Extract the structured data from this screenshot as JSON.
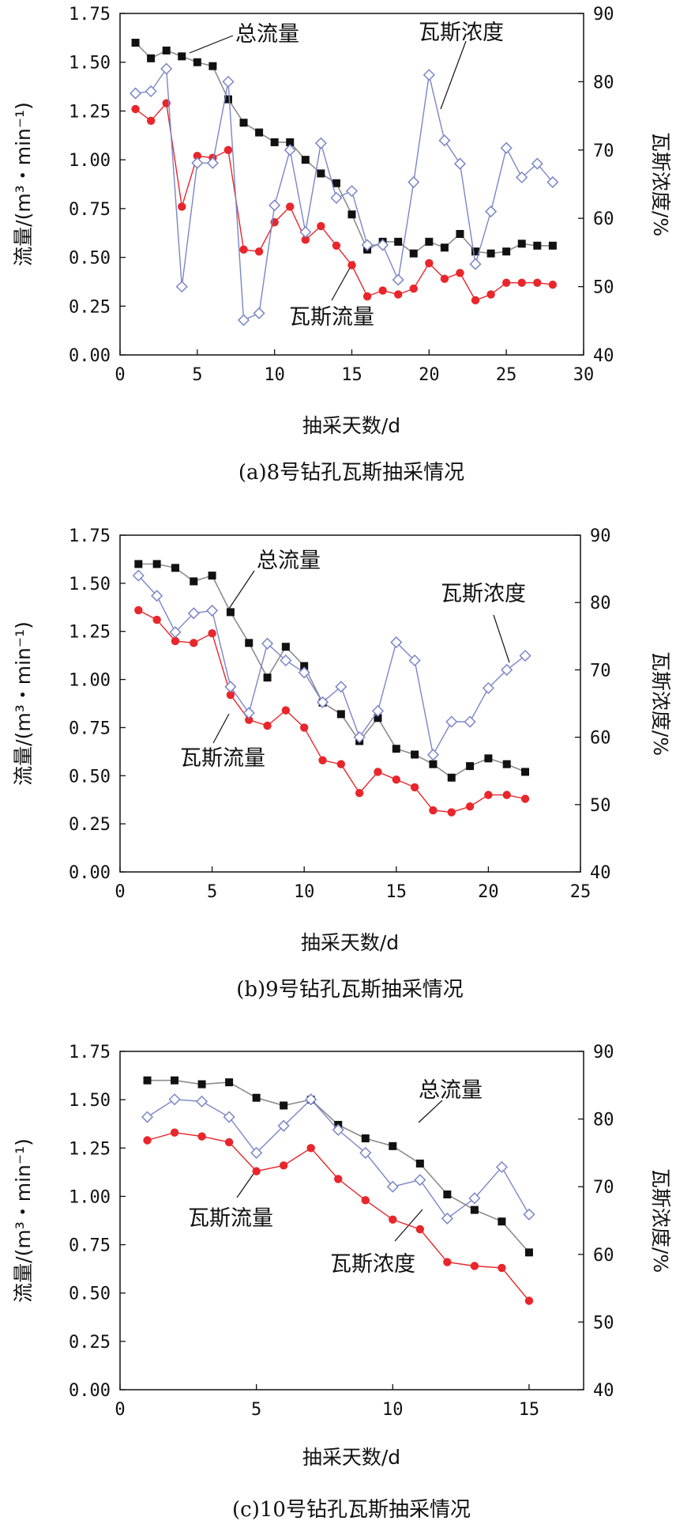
{
  "chart_data": [
    {
      "type": "line",
      "caption": "(a)8号钻孔瓦斯抽采情况",
      "xlabel": "抽采天数/d",
      "ylabel_left": "流量/(m³・min⁻¹)",
      "ylabel_right": "瓦斯浓度/%",
      "xlim": [
        0,
        30
      ],
      "xticks": [
        0,
        5,
        10,
        15,
        20,
        25,
        30
      ],
      "ylim_left": [
        0,
        1.75
      ],
      "yticks_left": [
        "0.00",
        "0.25",
        "0.50",
        "0.75",
        "1.00",
        "1.25",
        "1.50",
        "1.75"
      ],
      "ylim_right": [
        40,
        90
      ],
      "yticks_right": [
        "40",
        "50",
        "60",
        "70",
        "80",
        "90"
      ],
      "grid": false,
      "colors": {
        "total": "#111111",
        "gas_flow": "#e8262b",
        "concentration": "#7b86c7"
      },
      "series": [
        {
          "key": "total",
          "name": "总流量",
          "axis": "left",
          "marker": "square",
          "x": [
            1,
            2,
            3,
            4,
            5,
            6,
            7,
            8,
            9,
            10,
            11,
            12,
            13,
            14,
            15,
            16,
            17,
            18,
            19,
            20,
            21,
            22,
            23,
            24,
            25,
            26,
            27,
            28
          ],
          "y": [
            1.6,
            1.52,
            1.56,
            1.53,
            1.5,
            1.48,
            1.31,
            1.19,
            1.14,
            1.09,
            1.09,
            1.0,
            0.93,
            0.88,
            0.72,
            0.54,
            0.58,
            0.58,
            0.52,
            0.58,
            0.55,
            0.62,
            0.53,
            0.52,
            0.53,
            0.57,
            0.56,
            0.56
          ]
        },
        {
          "key": "gas_flow",
          "name": "瓦斯流量",
          "axis": "left",
          "marker": "circle",
          "x": [
            1,
            2,
            3,
            4,
            5,
            6,
            7,
            8,
            9,
            10,
            11,
            12,
            13,
            14,
            15,
            16,
            17,
            18,
            19,
            20,
            21,
            22,
            23,
            24,
            25,
            26,
            27,
            28
          ],
          "y": [
            1.26,
            1.2,
            1.29,
            0.76,
            1.02,
            1.01,
            1.05,
            0.54,
            0.53,
            0.68,
            0.76,
            0.59,
            0.66,
            0.56,
            0.46,
            0.3,
            0.33,
            0.31,
            0.34,
            0.47,
            0.39,
            0.42,
            0.28,
            0.31,
            0.37,
            0.37,
            0.37,
            0.36
          ]
        },
        {
          "key": "concentration",
          "name": "瓦斯浓度",
          "axis": "right",
          "marker": "diamond",
          "x": [
            1,
            2,
            3,
            4,
            5,
            6,
            7,
            8,
            9,
            10,
            11,
            12,
            13,
            14,
            15,
            16,
            17,
            18,
            19,
            20,
            21,
            22,
            23,
            24,
            25,
            26,
            27,
            28
          ],
          "y": [
            78.3,
            78.6,
            81.9,
            50.0,
            68.1,
            68.1,
            80.0,
            45.1,
            46.1,
            61.9,
            70.0,
            58.0,
            71.0,
            63.0,
            64.0,
            56.1,
            56.1,
            51.0,
            65.3,
            81.0,
            71.4,
            68.0,
            53.3,
            61.0,
            70.3,
            66.0,
            68.0,
            65.3
          ]
        }
      ],
      "annotations": [
        "总流量",
        "瓦斯浓度",
        "瓦斯流量"
      ]
    },
    {
      "type": "line",
      "caption": "(b)9号钻孔瓦斯抽采情况",
      "xlabel": "抽采天数/d",
      "ylabel_left": "流量/(m³・min⁻¹)",
      "ylabel_right": "瓦斯浓度/%",
      "xlim": [
        0,
        25
      ],
      "xticks": [
        0,
        5,
        10,
        15,
        20,
        25
      ],
      "ylim_left": [
        0,
        1.75
      ],
      "yticks_left": [
        "0.00",
        "0.25",
        "0.50",
        "0.75",
        "1.00",
        "1.25",
        "1.50",
        "1.75"
      ],
      "ylim_right": [
        40,
        90
      ],
      "yticks_right": [
        "40",
        "50",
        "60",
        "70",
        "80",
        "90"
      ],
      "grid": false,
      "colors": {
        "total": "#111111",
        "gas_flow": "#e8262b",
        "concentration": "#7b86c7"
      },
      "series": [
        {
          "key": "total",
          "name": "总流量",
          "axis": "left",
          "marker": "square",
          "x": [
            1,
            2,
            3,
            4,
            5,
            6,
            7,
            8,
            9,
            10,
            11,
            12,
            13,
            14,
            15,
            16,
            17,
            18,
            19,
            20,
            21,
            22
          ],
          "y": [
            1.6,
            1.6,
            1.58,
            1.51,
            1.54,
            1.35,
            1.19,
            1.01,
            1.17,
            1.07,
            0.88,
            0.82,
            0.68,
            0.8,
            0.64,
            0.61,
            0.56,
            0.49,
            0.55,
            0.59,
            0.56,
            0.52
          ]
        },
        {
          "key": "gas_flow",
          "name": "瓦斯流量",
          "axis": "left",
          "marker": "circle",
          "x": [
            1,
            2,
            3,
            4,
            5,
            6,
            7,
            8,
            9,
            10,
            11,
            12,
            13,
            14,
            15,
            16,
            17,
            18,
            19,
            20,
            21,
            22
          ],
          "y": [
            1.36,
            1.31,
            1.2,
            1.19,
            1.24,
            0.92,
            0.79,
            0.76,
            0.84,
            0.75,
            0.58,
            0.56,
            0.41,
            0.52,
            0.48,
            0.44,
            0.32,
            0.31,
            0.34,
            0.4,
            0.4,
            0.38
          ]
        },
        {
          "key": "concentration",
          "name": "瓦斯浓度",
          "axis": "right",
          "marker": "diamond",
          "x": [
            1,
            2,
            3,
            4,
            5,
            6,
            7,
            8,
            9,
            10,
            11,
            12,
            13,
            14,
            15,
            16,
            17,
            18,
            19,
            20,
            21,
            22
          ],
          "y": [
            84.0,
            81.0,
            75.6,
            78.4,
            78.8,
            67.5,
            63.6,
            73.9,
            71.4,
            69.6,
            65.2,
            67.5,
            60.0,
            63.9,
            74.1,
            71.4,
            57.4,
            62.3,
            62.3,
            67.3,
            70.0,
            72.1
          ]
        }
      ],
      "annotations": [
        "总流量",
        "瓦斯浓度",
        "瓦斯流量"
      ]
    },
    {
      "type": "line",
      "caption": "(c)10号钻孔瓦斯抽采情况",
      "xlabel": "抽采天数/d",
      "ylabel_left": "流量/(m³・min⁻¹)",
      "ylabel_right": "瓦斯浓度/%",
      "xlim": [
        0,
        17
      ],
      "xticks": [
        0,
        5,
        10,
        15
      ],
      "ylim_left": [
        0,
        1.75
      ],
      "yticks_left": [
        "0.00",
        "0.25",
        "0.50",
        "0.75",
        "1.00",
        "1.25",
        "1.50",
        "1.75"
      ],
      "ylim_right": [
        40,
        90
      ],
      "yticks_right": [
        "40",
        "50",
        "60",
        "70",
        "80",
        "90"
      ],
      "grid": false,
      "colors": {
        "total": "#111111",
        "gas_flow": "#e8262b",
        "concentration": "#7b86c7"
      },
      "series": [
        {
          "key": "total",
          "name": "总流量",
          "axis": "left",
          "marker": "square",
          "x": [
            1,
            2,
            3,
            4,
            5,
            6,
            7,
            8,
            9,
            10,
            11,
            12,
            13,
            14,
            15
          ],
          "y": [
            1.6,
            1.6,
            1.58,
            1.59,
            1.51,
            1.47,
            1.5,
            1.37,
            1.3,
            1.26,
            1.17,
            1.01,
            0.93,
            0.87,
            0.71
          ]
        },
        {
          "key": "gas_flow",
          "name": "瓦斯流量",
          "axis": "left",
          "marker": "circle",
          "x": [
            1,
            2,
            3,
            4,
            5,
            6,
            7,
            8,
            9,
            10,
            11,
            12,
            13,
            14,
            15
          ],
          "y": [
            1.29,
            1.33,
            1.31,
            1.28,
            1.13,
            1.16,
            1.25,
            1.09,
            0.98,
            0.88,
            0.83,
            0.66,
            0.64,
            0.63,
            0.46
          ]
        },
        {
          "key": "concentration",
          "name": "瓦斯浓度",
          "axis": "right",
          "marker": "diamond",
          "x": [
            1,
            2,
            3,
            4,
            5,
            6,
            7,
            8,
            9,
            10,
            11,
            12,
            13,
            14,
            15
          ],
          "y": [
            80.3,
            82.9,
            82.6,
            80.3,
            75.0,
            79.0,
            82.9,
            78.4,
            75.0,
            70.0,
            71.0,
            65.3,
            68.3,
            72.9,
            65.9
          ]
        }
      ],
      "annotations": [
        "总流量",
        "瓦斯流量",
        "瓦斯浓度"
      ]
    }
  ]
}
